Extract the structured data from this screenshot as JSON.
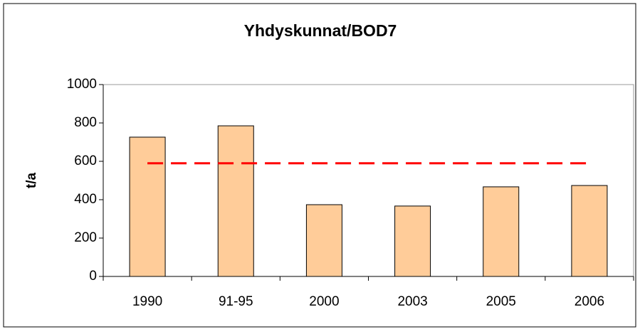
{
  "chart_data": {
    "type": "bar",
    "title": "Yhdyskunnat/BOD7",
    "y_label": "t/a",
    "categories": [
      "1990",
      "91-95",
      "2000",
      "2003",
      "2005",
      "2006"
    ],
    "values": [
      726,
      785,
      374,
      367,
      467,
      474
    ],
    "color": "#ffcc99",
    "reference_line": {
      "value": 590,
      "color": "#ff0000"
    },
    "ylim": [
      0,
      1000
    ],
    "yticks": [
      0,
      200,
      400,
      600,
      800,
      1000
    ],
    "grid": false
  }
}
